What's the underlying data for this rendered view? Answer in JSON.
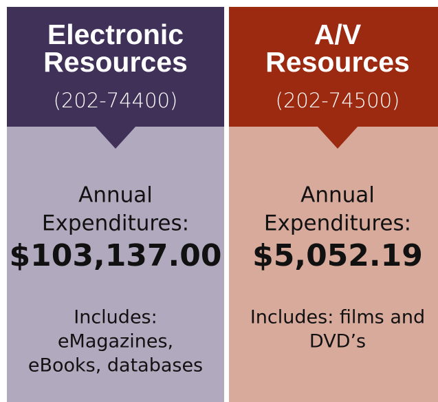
{
  "panels": [
    {
      "title_lines": [
        "Electronic",
        "Resources"
      ],
      "phone": "(202-74400)",
      "label_lines": [
        "Annual",
        "Expenditures:"
      ],
      "amount": "$103,137.00",
      "includes_lines": [
        "Includes:",
        "eMagazines,",
        "eBooks, databases"
      ]
    },
    {
      "title_lines": [
        "A/V",
        "Resources"
      ],
      "phone": "(202-74500)",
      "label_lines": [
        "Annual",
        "Expenditures:"
      ],
      "amount": "$5,052.19",
      "includes_lines": [
        "Includes: films and",
        "DVD’s"
      ]
    }
  ]
}
